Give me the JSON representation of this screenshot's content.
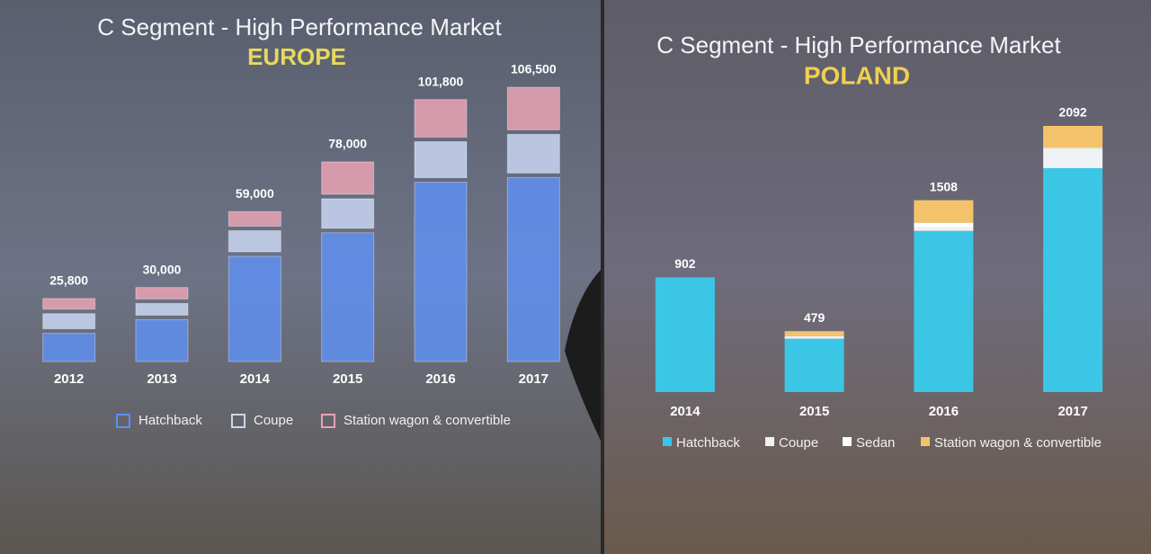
{
  "chart_data": [
    {
      "type": "stacked_bar",
      "title": "C Segment - High Performance Market",
      "subtitle": "EUROPE",
      "categories": [
        "2012",
        "2013",
        "2014",
        "2015",
        "2016",
        "2017"
      ],
      "series": [
        {
          "name": "Hatchback",
          "color": "#5f8ff0",
          "values": [
            12500,
            17700,
            41900,
            50900,
            70200,
            72000
          ]
        },
        {
          "name": "Coupe",
          "color": "#c9d6f2",
          "values": [
            7500,
            6200,
            9800,
            13000,
            15500,
            16500
          ]
        },
        {
          "name": "Station wagon & convertible",
          "color": "#e9a3b4",
          "values": [
            5800,
            6100,
            7300,
            14100,
            16100,
            18000
          ]
        }
      ],
      "totals": [
        25800,
        30000,
        59000,
        78000,
        101800,
        106500
      ],
      "total_labels": [
        "25,800",
        "30,000",
        "59,000",
        "78,000",
        "101,800",
        "106,500"
      ]
    },
    {
      "type": "stacked_bar",
      "title": "C Segment - High Performance Market",
      "subtitle": "POLAND",
      "categories": [
        "2014",
        "2015",
        "2016",
        "2017"
      ],
      "series": [
        {
          "name": "Hatchback",
          "color": "#3cc6e6",
          "values": [
            902,
            420,
            1267,
            1760
          ]
        },
        {
          "name": "Coupe",
          "color": "#eef2f5",
          "values": [
            0,
            12,
            30,
            150
          ]
        },
        {
          "name": "Sedan",
          "color": "#ffffff",
          "values": [
            0,
            8,
            34,
            10
          ]
        },
        {
          "name": "Station wagon & convertible",
          "color": "#f3c36c",
          "values": [
            0,
            39,
            177,
            172
          ]
        }
      ],
      "totals": [
        902,
        479,
        1508,
        2092
      ]
    }
  ]
}
